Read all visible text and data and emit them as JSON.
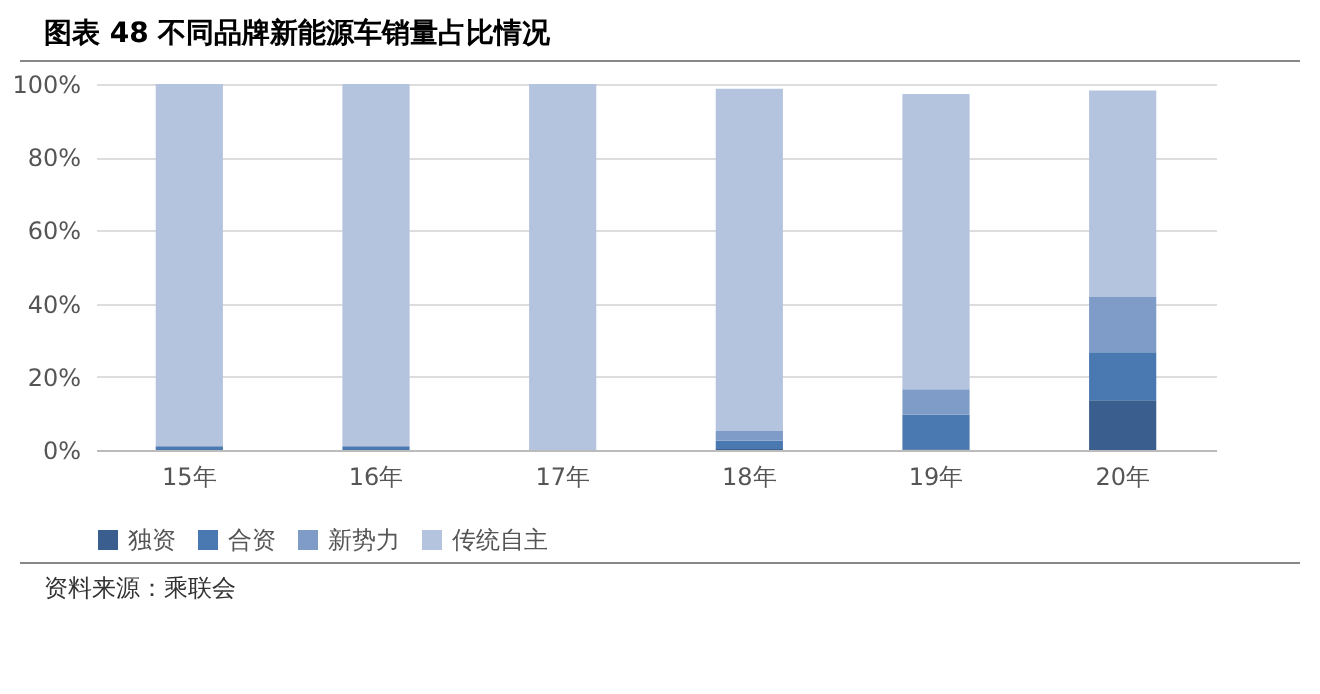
{
  "chart_data": {
    "type": "bar",
    "title": "图表 48 不同品牌新能源车销量占比情况",
    "stacked": true,
    "categories": [
      "15年",
      "16年",
      "17年",
      "18年",
      "19年",
      "20年"
    ],
    "series": [
      {
        "name": "独资",
        "color": "#3a5f8f",
        "values": [
          0,
          0,
          0,
          0.3,
          0.2,
          13.6
        ]
      },
      {
        "name": "合资",
        "color": "#4a78b0",
        "values": [
          1,
          1,
          0,
          2.2,
          9.5,
          13.1
        ]
      },
      {
        "name": "新势力",
        "color": "#7f9cc8",
        "values": [
          0,
          0,
          0,
          2.7,
          6.9,
          15.1
        ]
      },
      {
        "name": "传统自主",
        "color": "#b4c3de",
        "values": [
          99,
          99,
          100,
          93.5,
          80.7,
          56.4
        ]
      }
    ],
    "ylim": [
      0,
      100
    ],
    "yticks": [
      {
        "value": 0,
        "label": "0%"
      },
      {
        "value": 20,
        "label": "20%"
      },
      {
        "value": 40,
        "label": "40%"
      },
      {
        "value": 60,
        "label": "60%"
      },
      {
        "value": 80,
        "label": "80%"
      },
      {
        "value": 100,
        "label": "100%"
      }
    ],
    "grid": "y",
    "legend": "bottom",
    "annotations": [
      "资料来源：乘联会"
    ]
  }
}
